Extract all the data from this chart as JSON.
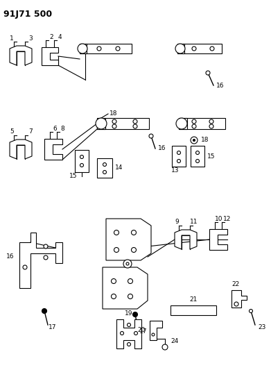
{
  "title": "91J71 500",
  "bg_color": "#ffffff",
  "figsize": [
    3.91,
    5.33
  ],
  "dpi": 100,
  "lw": 0.8
}
